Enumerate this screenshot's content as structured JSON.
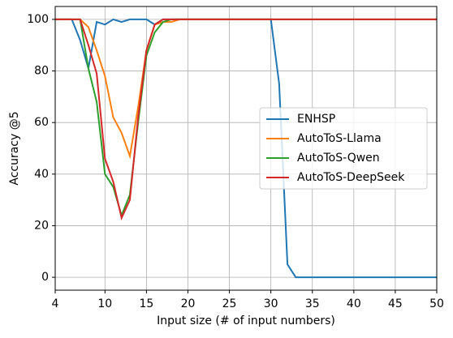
{
  "chart_data": {
    "type": "line",
    "x_label": "Input size (# of input numbers)",
    "y_label": "Accuracy @5",
    "x": [
      4,
      5,
      6,
      7,
      8,
      9,
      10,
      11,
      12,
      13,
      14,
      15,
      16,
      17,
      18,
      19,
      20,
      21,
      22,
      23,
      24,
      25,
      26,
      27,
      28,
      29,
      30,
      31,
      32,
      33,
      34,
      35,
      36,
      37,
      38,
      39,
      40,
      41,
      42,
      43,
      44,
      45,
      46,
      47,
      48,
      49,
      50
    ],
    "series": [
      {
        "name": "ENHSP",
        "color": "#1f77b4",
        "values": [
          100,
          100,
          100,
          92,
          81,
          99,
          98,
          100,
          99,
          100,
          100,
          100,
          98,
          100,
          100,
          100,
          100,
          100,
          100,
          100,
          100,
          100,
          100,
          100,
          100,
          100,
          100,
          75,
          5,
          0,
          0,
          0,
          0,
          0,
          0,
          0,
          0,
          0,
          0,
          0,
          0,
          0,
          0,
          0,
          0,
          0,
          0
        ]
      },
      {
        "name": "AutoToS-Llama",
        "color": "#ff7f0e",
        "values": [
          100,
          100,
          100,
          100,
          97,
          88,
          78,
          62,
          56,
          47,
          66,
          88,
          98,
          99,
          99,
          100,
          100,
          100,
          100,
          100,
          100,
          100,
          100,
          100,
          100,
          100,
          100,
          100,
          100,
          100,
          100,
          100,
          100,
          100,
          100,
          100,
          100,
          100,
          100,
          100,
          100,
          100,
          100,
          100,
          100,
          100,
          100
        ]
      },
      {
        "name": "AutoToS-Qwen",
        "color": "#2ca02c",
        "values": [
          100,
          100,
          100,
          100,
          81,
          68,
          40,
          35,
          24,
          32,
          60,
          86,
          95,
          99,
          100,
          100,
          100,
          100,
          100,
          100,
          100,
          100,
          100,
          100,
          100,
          100,
          100,
          100,
          100,
          100,
          100,
          100,
          100,
          100,
          100,
          100,
          100,
          100,
          100,
          100,
          100,
          100,
          100,
          100,
          100,
          100,
          100
        ]
      },
      {
        "name": "AutoToS-DeepSeek",
        "color": "#d62728",
        "values": [
          100,
          100,
          100,
          100,
          90,
          79,
          46,
          37,
          23,
          30,
          62,
          88,
          98,
          100,
          100,
          100,
          100,
          100,
          100,
          100,
          100,
          100,
          100,
          100,
          100,
          100,
          100,
          100,
          100,
          100,
          100,
          100,
          100,
          100,
          100,
          100,
          100,
          100,
          100,
          100,
          100,
          100,
          100,
          100,
          100,
          100,
          100
        ]
      }
    ],
    "xlim": [
      4,
      50
    ],
    "xticks": [
      4,
      10,
      15,
      20,
      25,
      30,
      35,
      40,
      45,
      50
    ],
    "ylim": [
      -5,
      105
    ],
    "yticks": [
      0,
      20,
      40,
      60,
      80,
      100
    ],
    "grid": true,
    "legend": "center right"
  }
}
